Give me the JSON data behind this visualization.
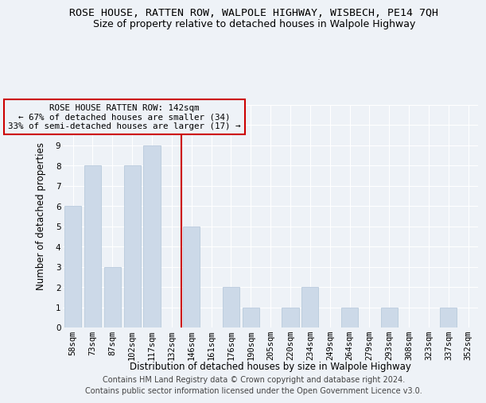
{
  "title": "ROSE HOUSE, RATTEN ROW, WALPOLE HIGHWAY, WISBECH, PE14 7QH",
  "subtitle": "Size of property relative to detached houses in Walpole Highway",
  "xlabel": "Distribution of detached houses by size in Walpole Highway",
  "ylabel": "Number of detached properties",
  "footer": "Contains HM Land Registry data © Crown copyright and database right 2024.\nContains public sector information licensed under the Open Government Licence v3.0.",
  "categories": [
    "58sqm",
    "73sqm",
    "87sqm",
    "102sqm",
    "117sqm",
    "132sqm",
    "146sqm",
    "161sqm",
    "176sqm",
    "190sqm",
    "205sqm",
    "220sqm",
    "234sqm",
    "249sqm",
    "264sqm",
    "279sqm",
    "293sqm",
    "308sqm",
    "323sqm",
    "337sqm",
    "352sqm"
  ],
  "values": [
    6,
    8,
    3,
    8,
    9,
    0,
    5,
    0,
    2,
    1,
    0,
    1,
    2,
    0,
    1,
    0,
    1,
    0,
    0,
    1,
    0
  ],
  "bar_color": "#ccd9e8",
  "bar_edgecolor": "#b0c4d8",
  "vline_index": 6,
  "vline_color": "#cc0000",
  "annotation_text": "ROSE HOUSE RATTEN ROW: 142sqm\n← 67% of detached houses are smaller (34)\n33% of semi-detached houses are larger (17) →",
  "annotation_box_edgecolor": "#cc0000",
  "ylim": [
    0,
    11
  ],
  "yticks": [
    0,
    1,
    2,
    3,
    4,
    5,
    6,
    7,
    8,
    9,
    10,
    11
  ],
  "background_color": "#eef2f7",
  "grid_color": "#ffffff",
  "title_fontsize": 9.5,
  "subtitle_fontsize": 9,
  "axis_label_fontsize": 8.5,
  "tick_fontsize": 7.5,
  "footer_fontsize": 7
}
